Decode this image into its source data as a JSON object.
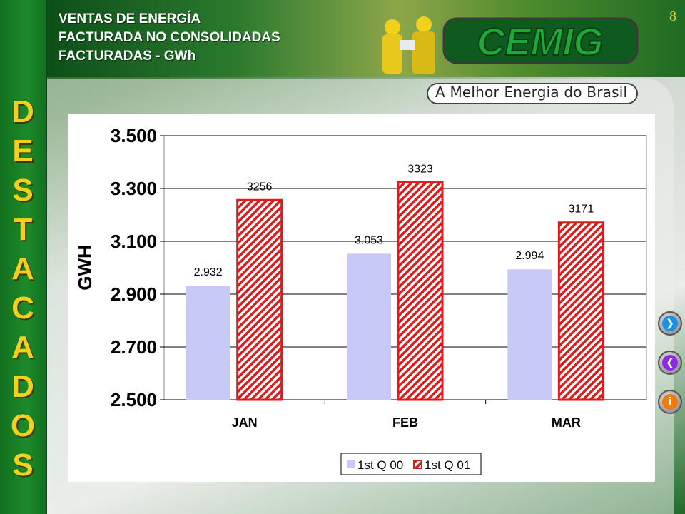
{
  "header": {
    "title_lines": [
      "VENTAS DE ENERGÍA",
      "FACTURADA NO CONSOLIDADAS",
      "FACTURADAS - GWh"
    ],
    "page_number": "8",
    "logo_text": "CEMIG",
    "slogan": "A Melhor Energia do Brasil"
  },
  "sidebar": {
    "letters": [
      "D",
      "E",
      "S",
      "T",
      "A",
      "C",
      "A",
      "D",
      "O",
      "S"
    ]
  },
  "nav": {
    "next_icon": "chevron-right-icon",
    "prev_icon": "chevron-left-icon",
    "info_icon": "info-icon"
  },
  "colors": {
    "series1": "#c9c9f7",
    "series2_stroke": "#e01b1b",
    "accent_yellow": "#f2d01b",
    "brand_green": "#1d8a2a"
  },
  "chart_data": {
    "type": "bar",
    "categories": [
      "JAN",
      "FEB",
      "MAR"
    ],
    "series": [
      {
        "name": "1st Q 00",
        "values": [
          2932,
          3053,
          2994
        ],
        "labels": [
          "2.932",
          "3.053",
          "2.994"
        ]
      },
      {
        "name": "1st Q 01",
        "values": [
          3256,
          3323,
          3171
        ],
        "labels": [
          "3256",
          "3323",
          "3171"
        ]
      }
    ],
    "ylabel": "GWH",
    "ylim": [
      2500,
      3500
    ],
    "yticks": [
      2500,
      2700,
      2900,
      3100,
      3300,
      3500
    ],
    "ytick_labels": [
      "2.500",
      "2.700",
      "2.900",
      "3.100",
      "3.300",
      "3.500"
    ],
    "grid": true,
    "legend_position": "bottom-right"
  }
}
